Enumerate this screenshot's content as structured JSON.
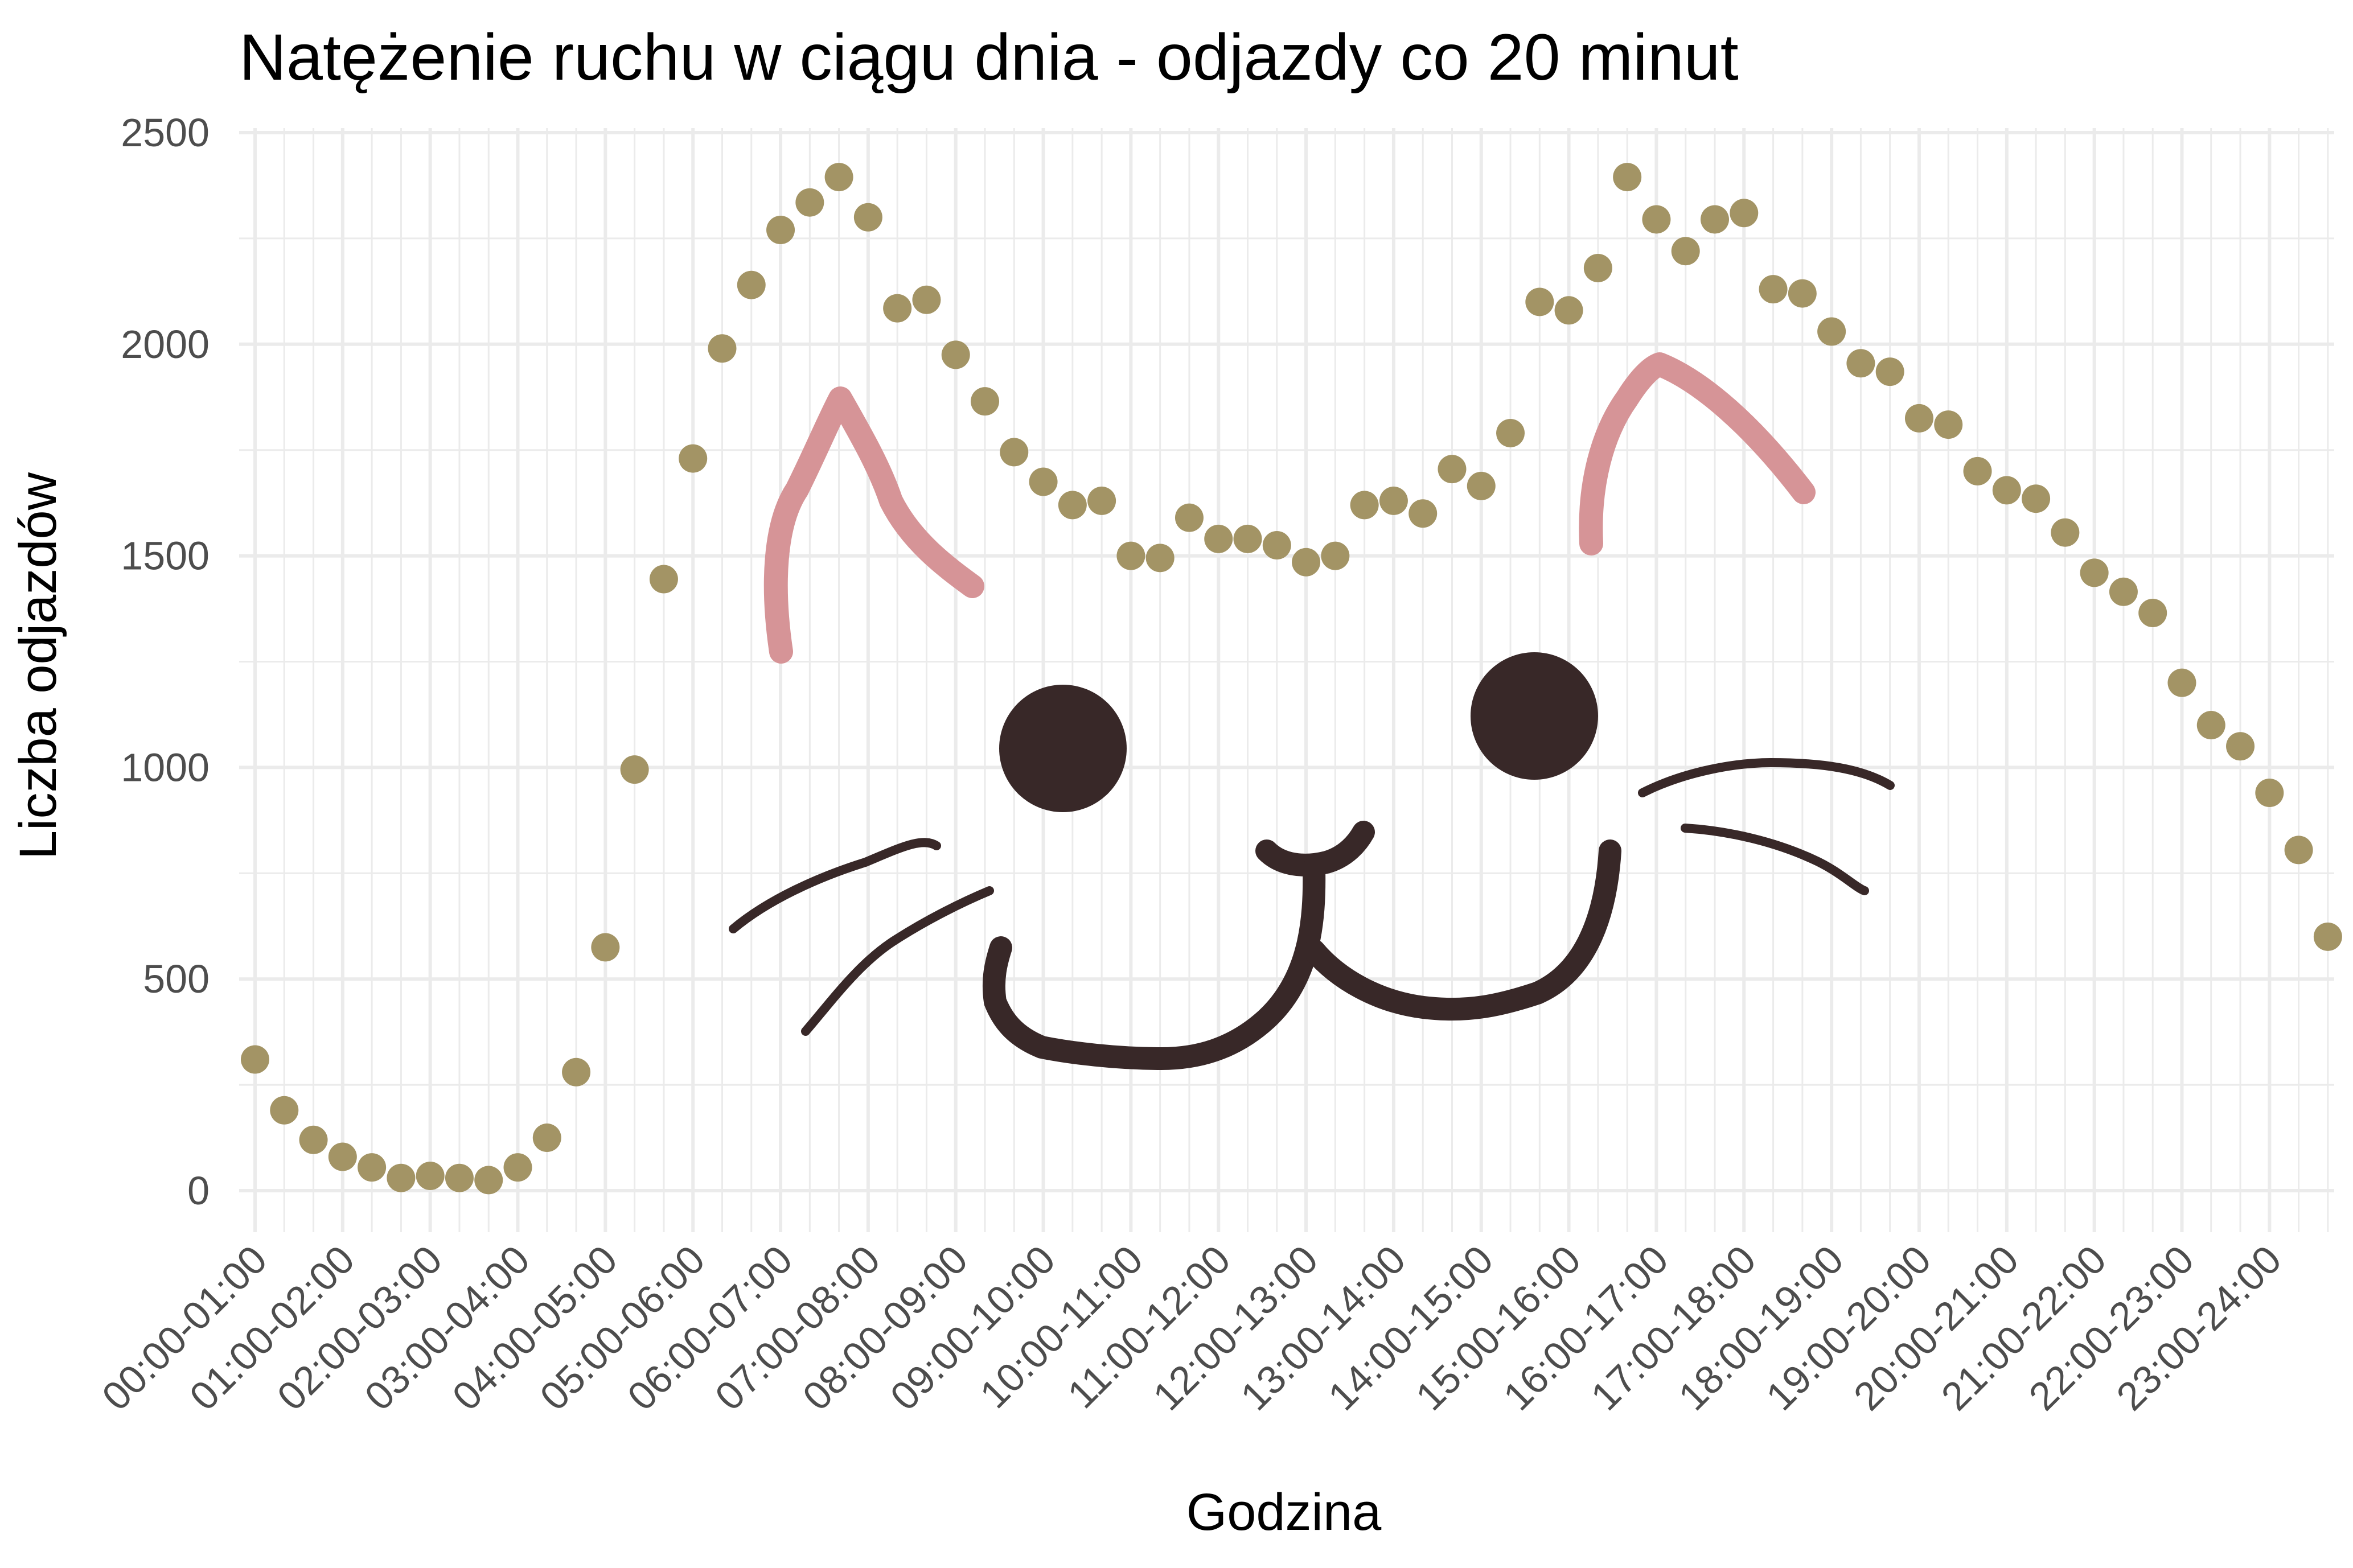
{
  "chart_data": {
    "type": "scatter",
    "title": "Natężenie ruchu w ciągu dnia - odjazdy co 20 minut",
    "xlabel": "Godzina",
    "ylabel": "Liczba odjazdów",
    "ylim": [
      0,
      2500
    ],
    "y_ticks": [
      0,
      500,
      1000,
      1500,
      2000,
      2500
    ],
    "grid": true,
    "legend": "none",
    "point_color": "#a39465",
    "categories": [
      "00:00-01:00",
      "01:00-02:00",
      "02:00-03:00",
      "03:00-04:00",
      "04:00-05:00",
      "05:00-06:00",
      "06:00-07:00",
      "07:00-08:00",
      "08:00-09:00",
      "09:00-10:00",
      "10:00-11:00",
      "11:00-12:00",
      "12:00-13:00",
      "13:00-14:00",
      "14:00-15:00",
      "15:00-16:00",
      "16:00-17:00",
      "17:00-18:00",
      "18:00-19:00",
      "19:00-20:00",
      "20:00-21:00",
      "21:00-22:00",
      "22:00-23:00",
      "23:00-24:00"
    ],
    "series": [
      {
        "values": [
          310,
          190,
          120,
          80,
          55,
          30,
          35,
          30,
          25,
          55,
          125,
          280,
          575,
          995,
          1445,
          1730,
          1990,
          2140,
          2270,
          2335,
          2395,
          2300,
          2085,
          2105,
          1975,
          1865,
          1745,
          1675,
          1620,
          1630,
          1500,
          1495,
          1590,
          1540,
          1540,
          1525,
          1485,
          1500,
          1620,
          1630,
          1600,
          1705,
          1665,
          1790,
          2100,
          2080,
          2180,
          2395,
          2295,
          2220,
          2295,
          2310,
          2130,
          2120,
          2030,
          1955,
          1935,
          1825,
          1810,
          1700,
          1655,
          1635,
          1555,
          1460,
          1415,
          1365,
          1200,
          1100,
          1050,
          940,
          805,
          600
        ]
      }
    ],
    "doodle_colors": {
      "ears": "#d69497",
      "face": "#382828"
    }
  }
}
